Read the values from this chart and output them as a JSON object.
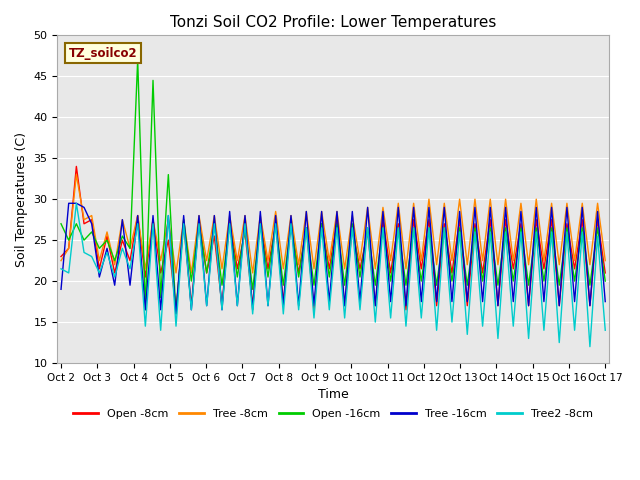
{
  "title": "Tonzi Soil CO2 Profile: Lower Temperatures",
  "ylabel": "Soil Temperatures (C)",
  "xlabel": "Time",
  "ylim": [
    10,
    50
  ],
  "background_color": "#e8e8e8",
  "label_box_text": "TZ_soilco2",
  "label_box_bg": "#ffffdd",
  "label_box_fg": "#880000",
  "label_box_edge": "#886600",
  "xtick_labels": [
    "Oct 2",
    "Oct 3",
    "Oct 4",
    "Oct 5",
    "Oct 6",
    "Oct 7",
    "Oct 8",
    "Oct 9",
    "Oct 10",
    "Oct 11",
    "Oct 12",
    "Oct 13",
    "Oct 14",
    "Oct 15",
    "Oct 16",
    "Oct 17"
  ],
  "series_order": [
    "Open -8cm",
    "Tree -8cm",
    "Open -16cm",
    "Tree -16cm",
    "Tree2 -8cm"
  ],
  "series": {
    "Open -8cm": {
      "color": "#ff0000",
      "data": [
        23.0,
        24.0,
        34.0,
        27.0,
        27.5,
        21.5,
        25.5,
        21.0,
        25.0,
        22.5,
        28.0,
        20.5,
        27.5,
        21.0,
        25.0,
        16.5,
        27.0,
        17.0,
        27.5,
        21.0,
        25.5,
        17.0,
        27.5,
        21.5,
        26.0,
        17.0,
        27.5,
        21.5,
        27.0,
        17.5,
        27.0,
        21.0,
        26.5,
        16.5,
        27.0,
        21.5,
        27.5,
        17.0,
        26.5,
        21.5,
        26.0,
        17.0,
        27.5,
        21.0,
        27.0,
        16.5,
        27.5,
        21.5,
        27.5,
        17.0,
        27.0,
        21.0,
        27.5,
        17.0,
        27.0,
        21.0,
        27.5,
        17.0,
        27.5,
        21.5,
        27.0,
        17.0,
        27.5,
        21.5,
        27.5,
        17.0,
        27.0,
        21.5,
        27.5,
        17.0,
        27.5,
        21.0
      ]
    },
    "Tree -8cm": {
      "color": "#ff8800",
      "data": [
        22.5,
        24.0,
        33.0,
        27.5,
        28.0,
        22.5,
        26.0,
        22.0,
        27.5,
        24.0,
        28.0,
        21.5,
        27.5,
        22.5,
        27.5,
        21.0,
        27.5,
        21.0,
        28.0,
        22.5,
        28.0,
        21.5,
        28.0,
        22.5,
        28.0,
        21.0,
        28.0,
        22.5,
        28.5,
        21.5,
        28.0,
        22.0,
        28.5,
        21.5,
        28.5,
        22.5,
        28.5,
        21.5,
        28.0,
        22.5,
        29.0,
        21.5,
        29.0,
        22.5,
        29.5,
        21.5,
        29.5,
        22.5,
        30.0,
        22.0,
        29.5,
        22.5,
        30.0,
        22.0,
        30.0,
        22.5,
        30.0,
        22.0,
        30.0,
        22.5,
        29.5,
        22.0,
        30.0,
        22.5,
        29.5,
        22.0,
        29.5,
        22.5,
        29.5,
        22.0,
        29.5,
        22.5
      ]
    },
    "Open -16cm": {
      "color": "#00cc00",
      "data": [
        27.0,
        25.0,
        27.0,
        25.0,
        26.0,
        24.0,
        25.0,
        22.5,
        25.5,
        24.0,
        47.0,
        16.5,
        44.5,
        18.0,
        33.0,
        16.0,
        27.5,
        20.0,
        27.0,
        21.0,
        27.0,
        19.5,
        27.0,
        20.5,
        26.5,
        19.0,
        27.0,
        20.5,
        27.0,
        19.5,
        27.0,
        20.5,
        26.5,
        19.5,
        27.0,
        20.5,
        27.0,
        19.5,
        27.0,
        20.5,
        26.5,
        19.5,
        26.5,
        20.0,
        26.5,
        19.5,
        26.5,
        20.0,
        26.5,
        19.5,
        26.5,
        20.0,
        26.5,
        19.5,
        26.5,
        20.0,
        26.5,
        19.5,
        26.5,
        20.0,
        26.5,
        19.5,
        26.5,
        20.0,
        26.5,
        19.5,
        26.5,
        20.0,
        26.5,
        19.5,
        26.5,
        20.0
      ]
    },
    "Tree -16cm": {
      "color": "#0000cc",
      "data": [
        19.0,
        29.5,
        29.5,
        29.0,
        27.0,
        20.5,
        24.0,
        19.5,
        27.5,
        19.5,
        28.0,
        16.5,
        28.0,
        16.5,
        28.0,
        16.0,
        28.0,
        16.5,
        28.0,
        17.0,
        28.0,
        16.5,
        28.5,
        17.0,
        28.0,
        16.5,
        28.5,
        17.0,
        28.0,
        17.0,
        28.0,
        17.0,
        28.5,
        17.0,
        28.5,
        17.5,
        28.5,
        17.0,
        28.5,
        17.5,
        29.0,
        17.0,
        28.5,
        17.5,
        29.0,
        17.0,
        29.0,
        17.5,
        29.0,
        17.5,
        29.0,
        17.5,
        28.5,
        17.5,
        29.0,
        17.5,
        29.0,
        17.0,
        29.0,
        17.5,
        28.5,
        17.0,
        29.0,
        17.5,
        29.0,
        17.0,
        29.0,
        17.5,
        29.0,
        17.0,
        28.5,
        17.5
      ]
    },
    "Tree2 -8cm": {
      "color": "#00cccc",
      "data": [
        21.5,
        21.0,
        29.5,
        23.5,
        23.0,
        21.0,
        23.5,
        20.5,
        24.0,
        21.5,
        27.0,
        14.5,
        27.0,
        14.0,
        28.0,
        14.5,
        27.0,
        16.5,
        27.0,
        17.0,
        27.0,
        16.5,
        27.0,
        17.0,
        27.0,
        16.0,
        27.0,
        17.0,
        27.0,
        16.0,
        27.0,
        16.5,
        26.5,
        15.5,
        26.5,
        16.5,
        26.5,
        15.5,
        26.5,
        16.5,
        26.5,
        15.0,
        26.5,
        15.5,
        26.5,
        14.5,
        26.5,
        15.5,
        26.5,
        14.0,
        26.5,
        15.0,
        26.0,
        13.5,
        26.0,
        14.5,
        26.0,
        13.0,
        26.0,
        14.5,
        26.0,
        13.0,
        26.0,
        14.0,
        26.0,
        12.5,
        26.0,
        14.0,
        26.0,
        12.0,
        25.5,
        14.0
      ]
    }
  }
}
